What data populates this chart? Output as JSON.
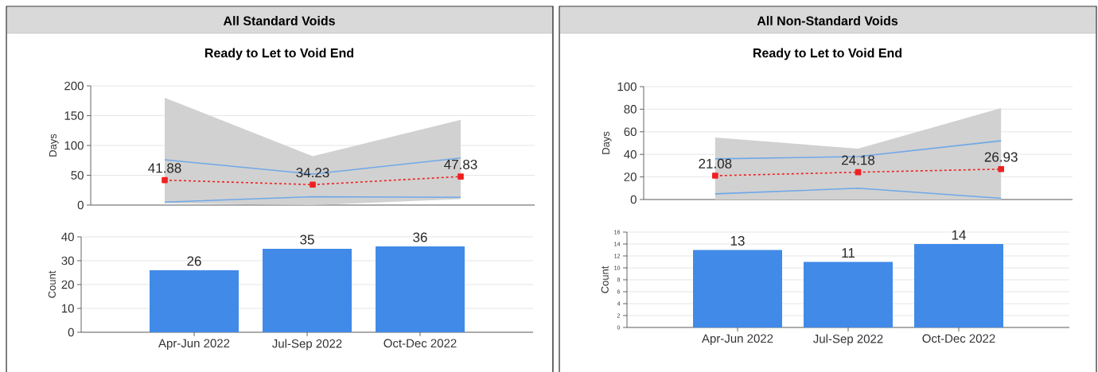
{
  "chart_data": [
    {
      "type": "line",
      "title": "All Standard Voids",
      "subtitle": "Ready to Let to Void End",
      "ylabel": "Days",
      "categories": [
        null,
        null,
        null
      ],
      "ylim": [
        0,
        200
      ],
      "yticks": [
        0,
        50,
        100,
        150,
        200
      ],
      "grid": "y",
      "tick_labels": "y",
      "series": [
        {
          "color": "#6fa8e8",
          "values": [
            76,
            52,
            79
          ]
        },
        {
          "color": "#6fa8e8",
          "values": [
            5,
            14,
            13
          ]
        },
        {
          "color": "#f02020",
          "values": [
            41.88,
            34.23,
            47.83
          ],
          "value_labels": [
            "41.88",
            "34.23",
            "47.83"
          ],
          "marker": "square",
          "line_style": "dashed",
          "lower": [
            3,
            0,
            10
          ],
          "upper": [
            180,
            82,
            143
          ]
        }
      ]
    },
    {
      "type": "bar",
      "ylabel": "Count",
      "categories": [
        "Apr-Jun 2022",
        "Jul-Sep 2022",
        "Oct-Dec 2022"
      ],
      "values": [
        26,
        35,
        36
      ],
      "color": "#418ae8",
      "ylim": [
        0,
        40
      ],
      "yticks": [
        0,
        10,
        20,
        30,
        40
      ],
      "grid": "y",
      "data_labels": true
    },
    {
      "type": "line",
      "title": "All Non-Standard Voids",
      "subtitle": "Ready to Let to Void End",
      "ylabel": "Days",
      "categories": [
        null,
        null,
        null
      ],
      "ylim": [
        0,
        100
      ],
      "yticks": [
        0,
        20,
        40,
        60,
        80,
        100
      ],
      "grid": "y",
      "tick_labels": "y",
      "series": [
        {
          "color": "#6fa8e8",
          "values": [
            36,
            38,
            52
          ]
        },
        {
          "color": "#6fa8e8",
          "values": [
            5,
            10,
            1
          ]
        },
        {
          "color": "#f02020",
          "values": [
            21.08,
            24.18,
            26.93
          ],
          "value_labels": [
            "21.08",
            "24.18",
            "26.93"
          ],
          "marker": "square",
          "line_style": "dashed",
          "lower": [
            0,
            0,
            0
          ],
          "upper": [
            55,
            45,
            81
          ]
        }
      ]
    },
    {
      "type": "bar",
      "ylabel": "Count",
      "categories": [
        "Apr-Jun 2022",
        "Jul-Sep 2022",
        "Oct-Dec 2022"
      ],
      "values": [
        13,
        11,
        14
      ],
      "color": "#418ae8",
      "ylim": [
        0,
        16
      ],
      "yticks": [
        0,
        2,
        4,
        6,
        8,
        10,
        12,
        14,
        16
      ],
      "grid": "y",
      "data_labels": true
    }
  ]
}
